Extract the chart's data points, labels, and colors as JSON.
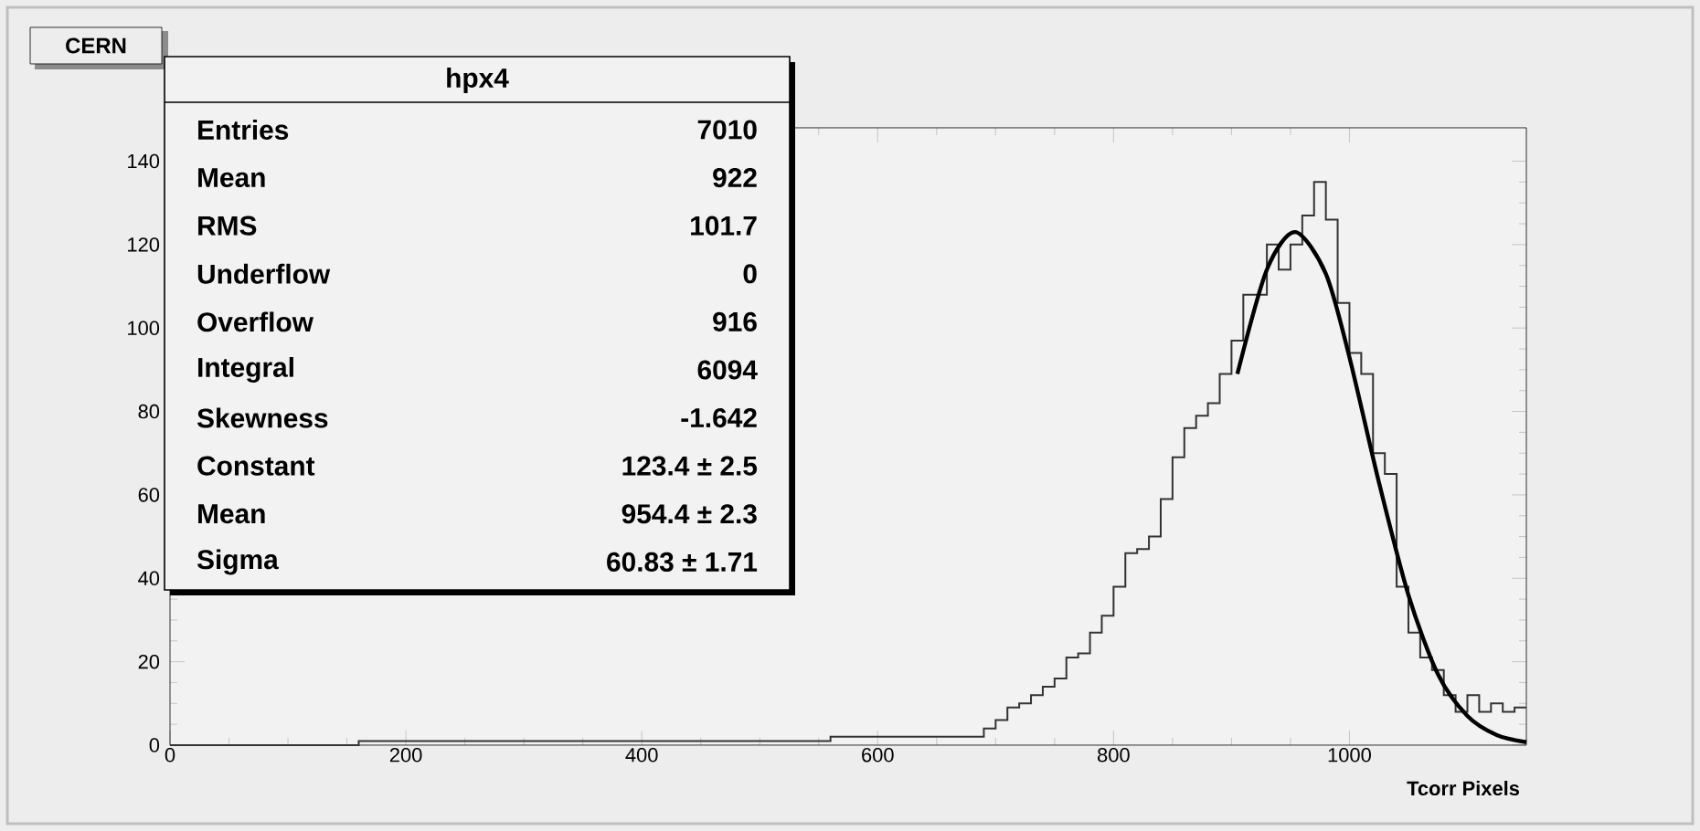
{
  "chart_data": {
    "type": "histogram",
    "title": "hpx4",
    "subtitle": "CERN",
    "xlabel": "Tcorr Pixels",
    "xlim": [
      0,
      1150
    ],
    "ylim": [
      0,
      148
    ],
    "xticks": [
      0,
      200,
      400,
      600,
      800,
      1000
    ],
    "yticks": [
      0,
      20,
      40,
      60,
      80,
      100,
      120,
      140
    ],
    "grid": false,
    "series": [
      {
        "color": "#333333",
        "bins": [
          0,
          40,
          80,
          120,
          160,
          200,
          240,
          280,
          320,
          360,
          400,
          440,
          480,
          520,
          560,
          600,
          640,
          680,
          690,
          700,
          710,
          720,
          730,
          740,
          750,
          760,
          770,
          780,
          790,
          800,
          810,
          820,
          830,
          840,
          850,
          860,
          870,
          880,
          890,
          900,
          910,
          920,
          930,
          940,
          950,
          960,
          970,
          980,
          990,
          1000,
          1010,
          1020,
          1030,
          1040,
          1050,
          1060,
          1070,
          1080,
          1090,
          1100,
          1110,
          1120,
          1130,
          1140,
          1150
        ],
        "values": [
          0,
          0,
          0,
          0,
          1,
          1,
          1,
          1,
          1,
          1,
          1,
          1,
          1,
          1,
          2,
          2,
          2,
          2,
          4,
          6,
          9,
          10,
          12,
          14,
          16,
          21,
          22,
          27,
          31,
          38,
          46,
          47,
          50,
          59,
          69,
          76,
          79,
          82,
          89,
          97,
          108,
          108,
          120,
          114,
          120,
          127,
          135,
          126,
          106,
          94,
          89,
          70,
          65,
          38,
          27,
          21,
          18,
          12,
          8,
          12,
          8,
          10,
          8,
          9
        ]
      },
      {
        "type": "line",
        "color": "#000000",
        "x": [
          905,
          930,
          954,
          980,
          1000,
          1025,
          1050,
          1075,
          1100,
          1125,
          1150
        ],
        "values": [
          89,
          114,
          123,
          113,
          93,
          63,
          36,
          17,
          7,
          2.4,
          0.7
        ]
      }
    ],
    "annotations": [
      "Entries",
      "7010",
      "Mean",
      "922",
      "RMS",
      "101.7",
      "Underflow",
      "0",
      "Overflow",
      "916",
      "Integral",
      "6094",
      "Skewness",
      "-1.642",
      "Constant",
      "123.4 ± 2.5",
      "Mean",
      "954.4 ± 2.3",
      "Sigma",
      "60.83 ± 1.71"
    ]
  }
}
